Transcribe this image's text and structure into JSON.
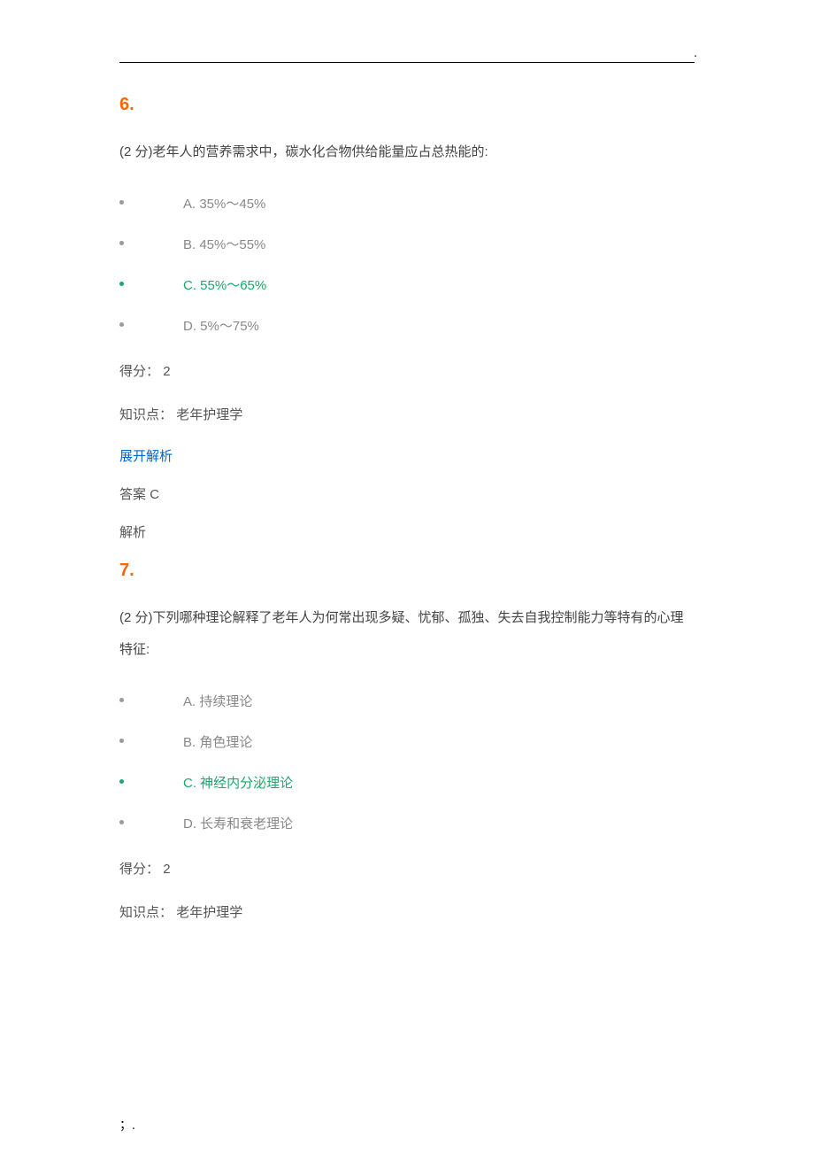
{
  "colors": {
    "question_number": "#ff6600",
    "body_text": "#444444",
    "option_text": "#888888",
    "correct_option": "#1aa86c",
    "link": "#0066cc",
    "bullet": "#999999",
    "rule": "#000000",
    "background": "#ffffff"
  },
  "typography": {
    "body_fontsize_pt": 11,
    "qnum_fontsize_pt": 15,
    "line_height": 2.4,
    "font_family": "Microsoft YaHei"
  },
  "footer_mark": "；.",
  "top_corner_mark": ".",
  "questions": [
    {
      "number": "6.",
      "text": "(2 分)老年人的营养需求中，碳水化合物供给能量应占总热能的:",
      "options": [
        {
          "label": "A. 35%～45%",
          "correct": false
        },
        {
          "label": "B. 45%～55%",
          "correct": false
        },
        {
          "label": "C. 55%～65%",
          "correct": true
        },
        {
          "label": "D. 5%～75%",
          "correct": false
        }
      ],
      "score_label": "得分：",
      "score_value": "2",
      "kp_label": "知识点：",
      "kp_value": "老年护理学",
      "expand": "展开解析",
      "answer_label": "答案",
      "answer_value": "C",
      "explain_label": "解析"
    },
    {
      "number": "7.",
      "text": "(2 分)下列哪种理论解释了老年人为何常出现多疑、忧郁、孤独、失去自我控制能力等特有的心理特征:",
      "options": [
        {
          "label": "A. 持续理论",
          "correct": false
        },
        {
          "label": "B. 角色理论",
          "correct": false
        },
        {
          "label": "C. 神经内分泌理论",
          "correct": true
        },
        {
          "label": "D. 长寿和衰老理论",
          "correct": false
        }
      ],
      "score_label": "得分：",
      "score_value": "2",
      "kp_label": "知识点：",
      "kp_value": "老年护理学"
    }
  ]
}
